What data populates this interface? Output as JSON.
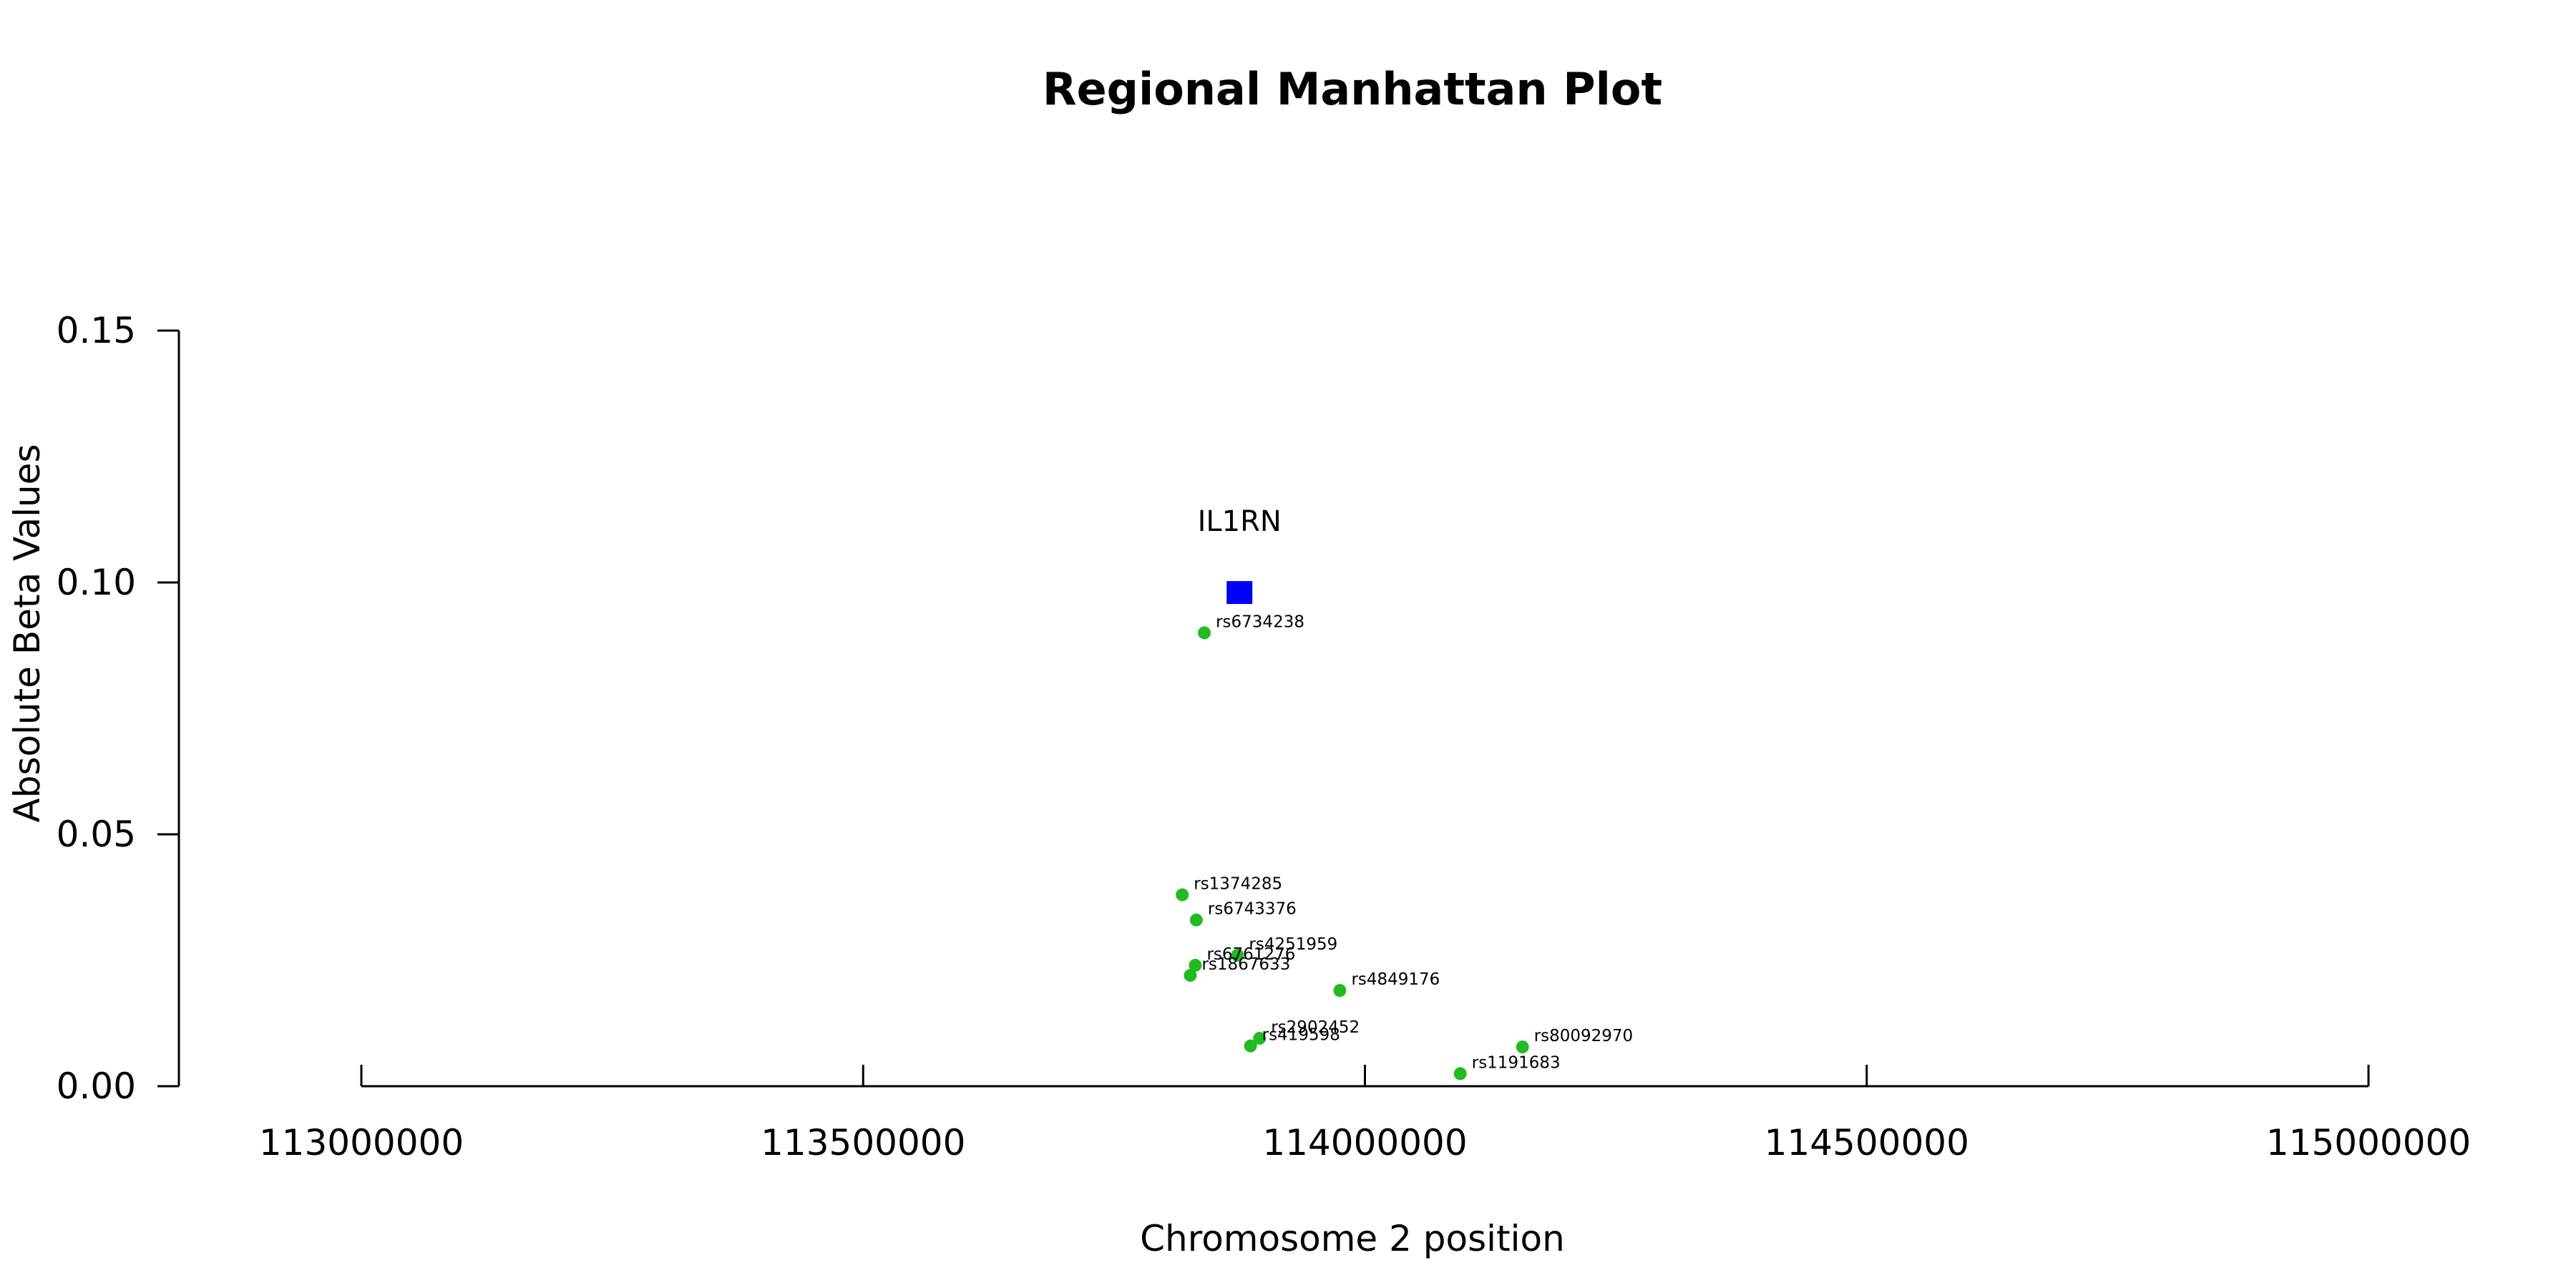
{
  "chart_data": {
    "type": "scatter",
    "title": "Regional Manhattan Plot",
    "xlabel": "Chromosome 2 position",
    "ylabel": "Absolute Beta Values",
    "xlim": [
      113000000,
      115000000
    ],
    "ylim": [
      0,
      0.15
    ],
    "x_ticks": [
      113000000,
      113500000,
      114000000,
      114500000,
      115000000
    ],
    "x_tick_labels": [
      "113000000",
      "113500000",
      "114000000",
      "114500000",
      "115000000"
    ],
    "y_ticks": [
      0,
      0.05,
      0.1,
      0.15
    ],
    "y_tick_labels": [
      "0.00",
      "0.05",
      "0.10",
      "0.15"
    ],
    "grid": false,
    "gene": {
      "name": "IL1RN",
      "x": 113875000,
      "y": 0.098,
      "color": "#0000ff",
      "marker": "square"
    },
    "snp_color": "#22bb22",
    "snps": [
      {
        "name": "rs6734238",
        "x": 113840000,
        "y": 0.09
      },
      {
        "name": "rs1374285",
        "x": 113818000,
        "y": 0.038
      },
      {
        "name": "rs6743376",
        "x": 113832000,
        "y": 0.033
      },
      {
        "name": "rs4251959",
        "x": 113873000,
        "y": 0.026
      },
      {
        "name": "rs6761276",
        "x": 113831000,
        "y": 0.024
      },
      {
        "name": "rs1867633",
        "x": 113826000,
        "y": 0.022
      },
      {
        "name": "rs4849176",
        "x": 113975000,
        "y": 0.019
      },
      {
        "name": "rs2902452",
        "x": 113895000,
        "y": 0.0095
      },
      {
        "name": "rs419598",
        "x": 113886000,
        "y": 0.008
      },
      {
        "name": "rs80092970",
        "x": 114157000,
        "y": 0.0078
      },
      {
        "name": "rs1191683",
        "x": 114095000,
        "y": 0.0025
      }
    ]
  }
}
